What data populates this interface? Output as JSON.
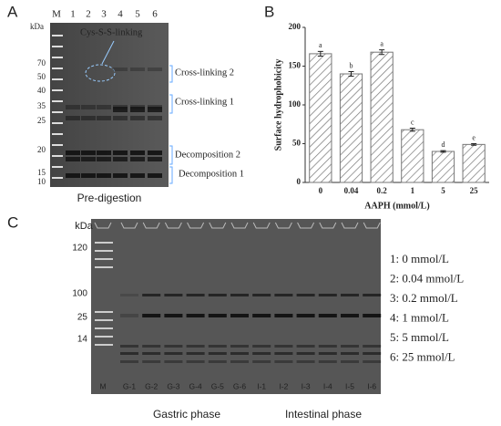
{
  "chart_data": {
    "type": "bar",
    "panel": "B",
    "ylabel": "Surface hydrophobicity",
    "xlabel": "AAPH (mmol/L)",
    "categories": [
      "0",
      "0.04",
      "0.2",
      "1",
      "5",
      "25"
    ],
    "values": [
      166,
      140,
      168,
      68,
      40,
      49
    ],
    "errors": [
      3,
      3,
      3,
      2,
      1,
      1
    ],
    "letters": [
      "a",
      "b",
      "a",
      "c",
      "d",
      "e"
    ],
    "color": "#777777",
    "ylim": [
      0,
      200
    ],
    "yticks": [
      0,
      50,
      100,
      150,
      200
    ]
  },
  "gel_a": {
    "panel": "A",
    "unit": "kDa",
    "lanes": [
      "M",
      "1",
      "2",
      "3",
      "4",
      "5",
      "6"
    ],
    "markers": [
      "70",
      "50",
      "40",
      "35",
      "25",
      "20",
      "15",
      "10"
    ],
    "annotations": [
      "Cys-S-S-linking",
      "Cross-linking 2",
      "Cross-linking 1",
      "Decomposition 2",
      "Decomposition 1"
    ],
    "caption": "Pre-digestion"
  },
  "gel_c": {
    "panel": "C",
    "unit": "kDa",
    "markers": [
      "120",
      "100",
      "25",
      "14"
    ],
    "lanes": [
      "M",
      "G-1",
      "G-2",
      "G-3",
      "G-4",
      "G-5",
      "G-6",
      "I-1",
      "I-2",
      "I-3",
      "I-4",
      "I-5",
      "I-6"
    ],
    "legend": [
      "1: 0 mmol/L",
      "2: 0.04 mmol/L",
      "3: 0.2 mmol/L",
      "4: 1 mmol/L",
      "5: 5 mmol/L",
      "6: 25 mmol/L"
    ],
    "phases": [
      "Gastric phase",
      "Intestinal phase"
    ]
  }
}
